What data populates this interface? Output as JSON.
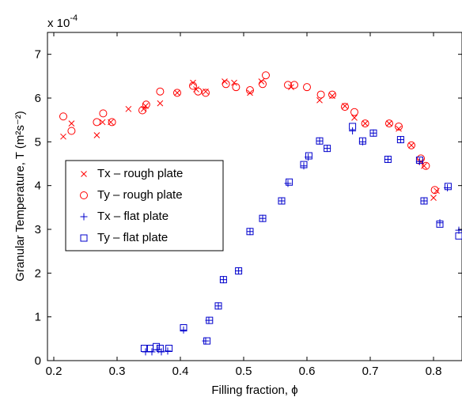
{
  "chart_data": {
    "type": "scatter",
    "title": "",
    "xlabel": "Filling fraction, ϕ",
    "ylabel": "Granular Temperature, T (m²s⁻²)",
    "y_multiplier_label": "x 10",
    "y_multiplier_exp": "-4",
    "xlim": [
      0.19,
      0.845
    ],
    "ylim": [
      0,
      7.5
    ],
    "xticks": [
      0.2,
      0.3,
      0.4,
      0.5,
      0.6,
      0.7,
      0.8
    ],
    "xtick_labels": [
      "0.2",
      "0.3",
      "0.4",
      "0.5",
      "0.6",
      "0.7",
      "0.8"
    ],
    "yticks": [
      0,
      1,
      2,
      3,
      4,
      5,
      6,
      7
    ],
    "ytick_labels": [
      "0",
      "1",
      "2",
      "3",
      "4",
      "5",
      "6",
      "7"
    ],
    "grid": false,
    "legend_position": "center-left",
    "colors": {
      "red": "#ff0000",
      "blue": "#0000cc"
    },
    "series": [
      {
        "name": "Tx – rough plate",
        "marker": "x",
        "color": "#ff0000",
        "points": [
          [
            0.215,
            5.12
          ],
          [
            0.228,
            5.42
          ],
          [
            0.268,
            5.15
          ],
          [
            0.277,
            5.45
          ],
          [
            0.29,
            5.45
          ],
          [
            0.318,
            5.75
          ],
          [
            0.342,
            5.75
          ],
          [
            0.345,
            5.82
          ],
          [
            0.368,
            5.88
          ],
          [
            0.395,
            6.12
          ],
          [
            0.42,
            6.35
          ],
          [
            0.425,
            6.2
          ],
          [
            0.44,
            6.15
          ],
          [
            0.47,
            6.38
          ],
          [
            0.485,
            6.35
          ],
          [
            0.51,
            6.12
          ],
          [
            0.528,
            6.38
          ],
          [
            0.575,
            6.25
          ],
          [
            0.62,
            5.95
          ],
          [
            0.64,
            6.05
          ],
          [
            0.66,
            5.82
          ],
          [
            0.675,
            5.55
          ],
          [
            0.692,
            5.42
          ],
          [
            0.73,
            5.42
          ],
          [
            0.745,
            5.3
          ],
          [
            0.765,
            4.92
          ],
          [
            0.78,
            4.55
          ],
          [
            0.785,
            4.45
          ],
          [
            0.8,
            3.72
          ],
          [
            0.805,
            3.88
          ]
        ]
      },
      {
        "name": "Ty – rough plate",
        "marker": "o",
        "color": "#ff0000",
        "points": [
          [
            0.215,
            5.58
          ],
          [
            0.228,
            5.25
          ],
          [
            0.268,
            5.45
          ],
          [
            0.278,
            5.65
          ],
          [
            0.292,
            5.45
          ],
          [
            0.34,
            5.72
          ],
          [
            0.346,
            5.85
          ],
          [
            0.368,
            6.15
          ],
          [
            0.395,
            6.12
          ],
          [
            0.42,
            6.28
          ],
          [
            0.428,
            6.15
          ],
          [
            0.44,
            6.12
          ],
          [
            0.472,
            6.32
          ],
          [
            0.488,
            6.25
          ],
          [
            0.51,
            6.18
          ],
          [
            0.53,
            6.32
          ],
          [
            0.535,
            6.52
          ],
          [
            0.57,
            6.3
          ],
          [
            0.58,
            6.3
          ],
          [
            0.6,
            6.25
          ],
          [
            0.622,
            6.08
          ],
          [
            0.64,
            6.08
          ],
          [
            0.66,
            5.8
          ],
          [
            0.675,
            5.68
          ],
          [
            0.692,
            5.42
          ],
          [
            0.73,
            5.42
          ],
          [
            0.745,
            5.35
          ],
          [
            0.765,
            4.92
          ],
          [
            0.78,
            4.62
          ],
          [
            0.788,
            4.45
          ],
          [
            0.802,
            3.9
          ]
        ]
      },
      {
        "name": "Tx – flat plate",
        "marker": "+",
        "color": "#0000cc",
        "points": [
          [
            0.345,
            0.2
          ],
          [
            0.355,
            0.2
          ],
          [
            0.365,
            0.25
          ],
          [
            0.37,
            0.2
          ],
          [
            0.38,
            0.22
          ],
          [
            0.405,
            0.7
          ],
          [
            0.44,
            0.45
          ],
          [
            0.445,
            0.92
          ],
          [
            0.46,
            1.25
          ],
          [
            0.468,
            1.85
          ],
          [
            0.492,
            2.05
          ],
          [
            0.51,
            2.95
          ],
          [
            0.53,
            3.25
          ],
          [
            0.56,
            3.65
          ],
          [
            0.57,
            4.05
          ],
          [
            0.595,
            4.45
          ],
          [
            0.602,
            4.65
          ],
          [
            0.62,
            5.02
          ],
          [
            0.632,
            4.85
          ],
          [
            0.672,
            5.25
          ],
          [
            0.688,
            5.0
          ],
          [
            0.705,
            5.2
          ],
          [
            0.728,
            4.6
          ],
          [
            0.748,
            5.05
          ],
          [
            0.778,
            4.55
          ],
          [
            0.785,
            3.65
          ],
          [
            0.81,
            3.15
          ],
          [
            0.822,
            3.95
          ],
          [
            0.84,
            2.98
          ]
        ]
      },
      {
        "name": "Ty – flat plate",
        "marker": "square",
        "color": "#0000cc",
        "points": [
          [
            0.343,
            0.28
          ],
          [
            0.352,
            0.28
          ],
          [
            0.362,
            0.32
          ],
          [
            0.368,
            0.28
          ],
          [
            0.382,
            0.28
          ],
          [
            0.405,
            0.75
          ],
          [
            0.442,
            0.45
          ],
          [
            0.446,
            0.92
          ],
          [
            0.46,
            1.25
          ],
          [
            0.468,
            1.85
          ],
          [
            0.492,
            2.05
          ],
          [
            0.51,
            2.95
          ],
          [
            0.53,
            3.25
          ],
          [
            0.56,
            3.65
          ],
          [
            0.572,
            4.08
          ],
          [
            0.595,
            4.48
          ],
          [
            0.603,
            4.68
          ],
          [
            0.62,
            5.02
          ],
          [
            0.632,
            4.85
          ],
          [
            0.672,
            5.35
          ],
          [
            0.688,
            5.02
          ],
          [
            0.705,
            5.2
          ],
          [
            0.728,
            4.6
          ],
          [
            0.748,
            5.05
          ],
          [
            0.778,
            4.58
          ],
          [
            0.785,
            3.65
          ],
          [
            0.81,
            3.12
          ],
          [
            0.823,
            3.98
          ],
          [
            0.84,
            2.85
          ]
        ]
      }
    ]
  }
}
